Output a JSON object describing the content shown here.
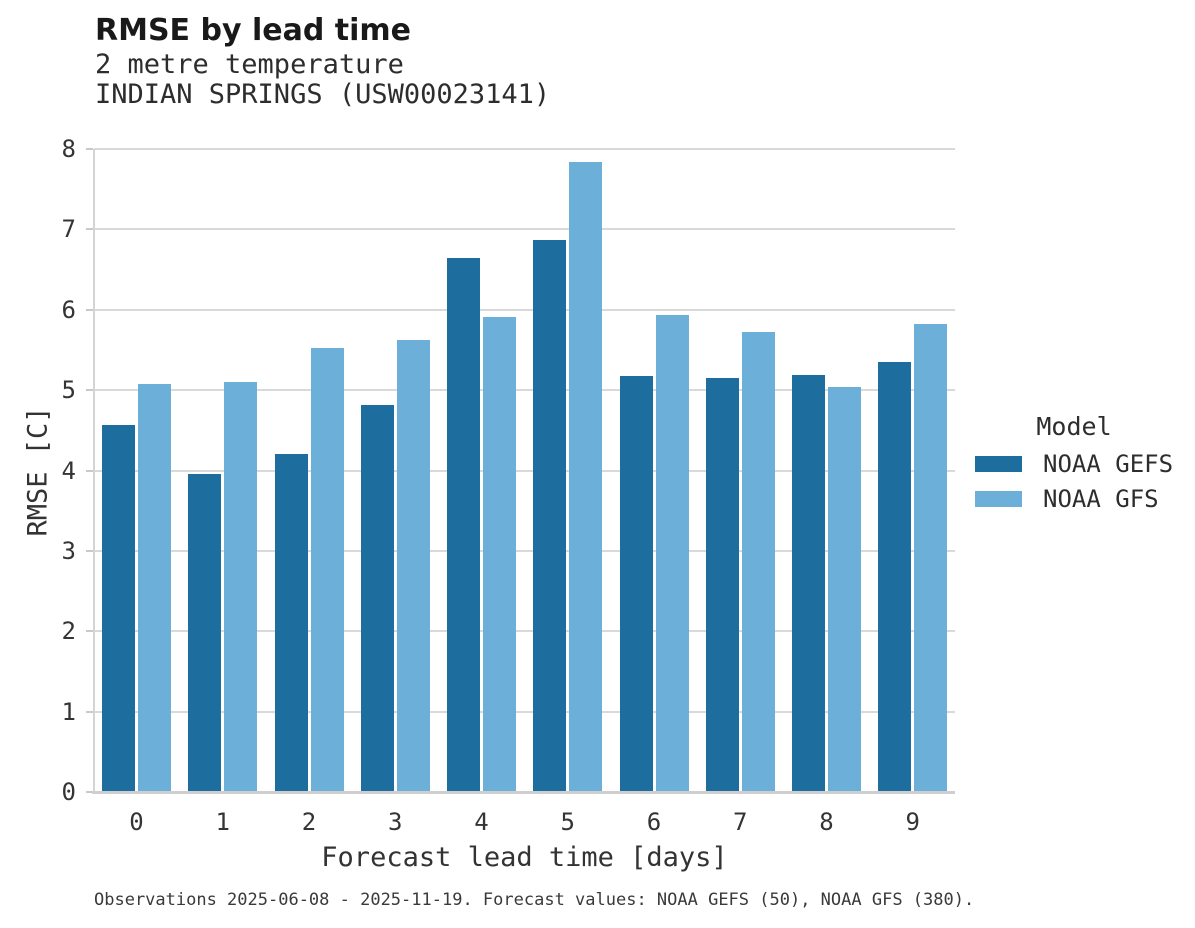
{
  "chart_data": {
    "type": "bar",
    "title": "RMSE by lead time",
    "subtitle_1": "2 metre temperature",
    "subtitle_2": "INDIAN SPRINGS (USW00023141)",
    "xlabel": "Forecast lead time [days]",
    "ylabel": "RMSE [C]",
    "ylim": [
      0,
      8
    ],
    "yticks": [
      0,
      1,
      2,
      3,
      4,
      5,
      6,
      7,
      8
    ],
    "grid": true,
    "legend": {
      "title": "Model",
      "position": "right"
    },
    "categories": [
      0,
      1,
      2,
      3,
      4,
      5,
      6,
      7,
      8,
      9
    ],
    "series": [
      {
        "name": "NOAA GEFS",
        "color": "#1d6d9e",
        "values": [
          4.56,
          3.96,
          4.2,
          4.81,
          6.64,
          6.87,
          5.17,
          5.15,
          5.19,
          5.35
        ]
      },
      {
        "name": "NOAA GFS",
        "color": "#6cb0d9",
        "values": [
          5.07,
          5.1,
          5.52,
          5.62,
          5.91,
          7.84,
          5.94,
          5.72,
          5.04,
          5.82
        ]
      }
    ],
    "caption": "Observations 2025-06-08 - 2025-11-19. Forecast values: NOAA GEFS (50), NOAA GFS (380)."
  }
}
